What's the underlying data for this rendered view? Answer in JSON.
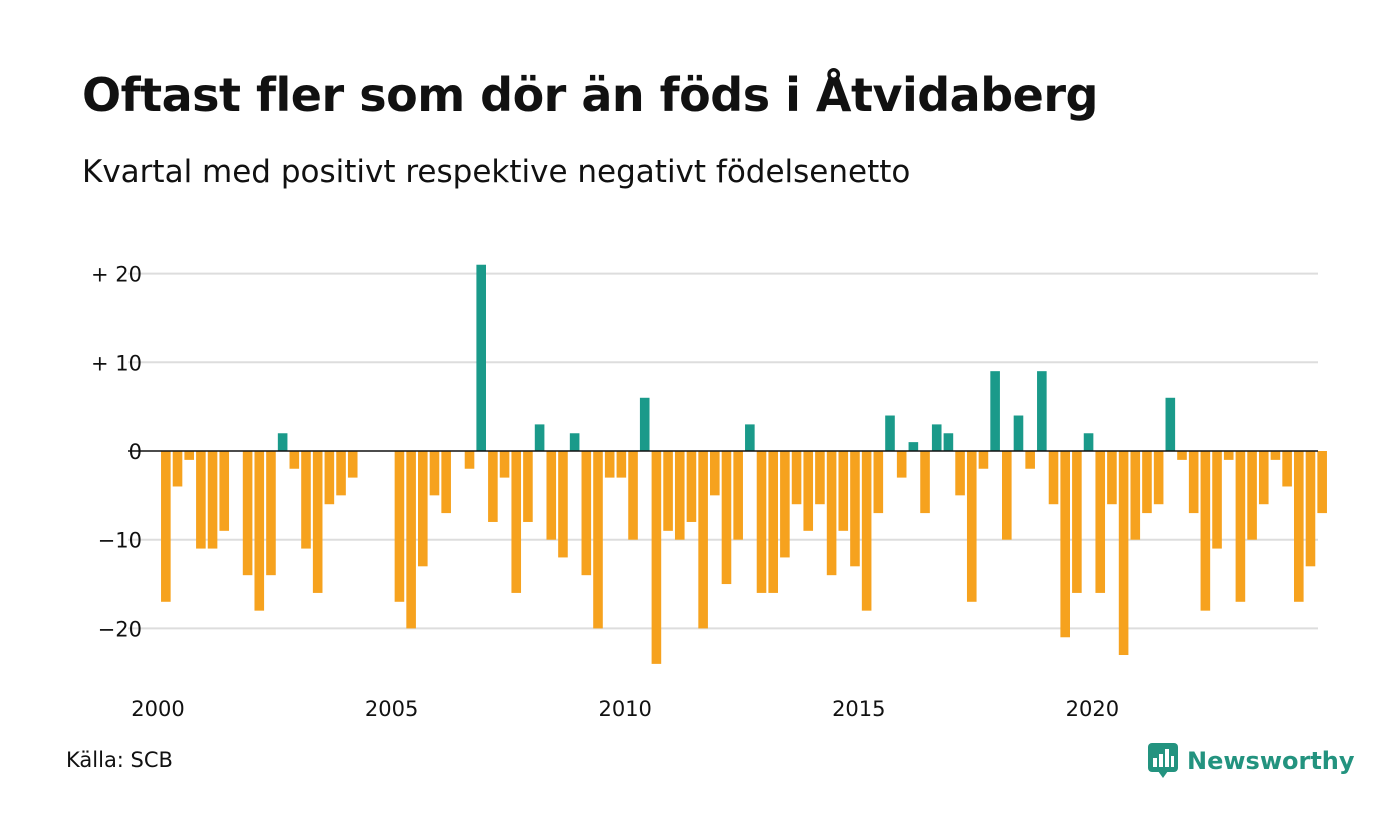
{
  "title": "Oftast fler som dör än föds i Åtvidaberg",
  "subtitle": "Kvartal med positivt respektive negativt födelsenetto",
  "source": "Källa: SCB",
  "brand": {
    "name": "Newsworthy",
    "icon": "bar-chart-speech-bubble-icon"
  },
  "chart_data": {
    "type": "bar",
    "title": "Oftast fler som dör än föds i Åtvidaberg",
    "subtitle": "Kvartal med positivt respektive negativt födelsenetto",
    "xlabel": "",
    "ylabel": "",
    "x_start": 2000,
    "x_ticks": [
      {
        "value": 2000,
        "label": "2000"
      },
      {
        "value": 2005,
        "label": "2005"
      },
      {
        "value": 2010,
        "label": "2010"
      },
      {
        "value": 2015,
        "label": "2015"
      },
      {
        "value": 2020,
        "label": "2020"
      }
    ],
    "y_ticks": [
      {
        "value": 20,
        "label": "+ 20"
      },
      {
        "value": 10,
        "label": "+ 10"
      },
      {
        "value": 0,
        "label": "0"
      },
      {
        "value": -10,
        "label": "−10"
      },
      {
        "value": -20,
        "label": "−20"
      }
    ],
    "ylim": [
      -26,
      23
    ],
    "xlim": [
      2000,
      2025
    ],
    "grid": true,
    "legend": "none",
    "colors": {
      "positive": "#1a9a8a",
      "negative": "#f6a21e"
    },
    "values": [
      -17,
      -4,
      -1,
      -11,
      -11,
      -9,
      0,
      -14,
      -18,
      -14,
      2,
      -2,
      -11,
      -16,
      -6,
      -5,
      -3,
      0,
      0,
      0,
      -17,
      -20,
      -13,
      -5,
      -7,
      0,
      -2,
      21,
      -8,
      -3,
      -16,
      -8,
      3,
      -10,
      -12,
      2,
      -14,
      -20,
      -3,
      -3,
      -10,
      6,
      -24,
      -9,
      -10,
      -8,
      -20,
      -5,
      -15,
      -10,
      3,
      -16,
      -16,
      -12,
      -6,
      -9,
      -6,
      -14,
      -9,
      -13,
      -18,
      -7,
      4,
      -3,
      1,
      -7,
      3,
      2,
      -5,
      -17,
      -2,
      9,
      -10,
      4,
      -2,
      9,
      -6,
      -21,
      -16,
      2,
      -16,
      -6,
      -23,
      -10,
      -7,
      -6,
      6,
      -1,
      -7,
      -18,
      -11,
      -1,
      -17,
      -10,
      -6,
      -1,
      -4,
      -17,
      -13,
      -7
    ]
  }
}
